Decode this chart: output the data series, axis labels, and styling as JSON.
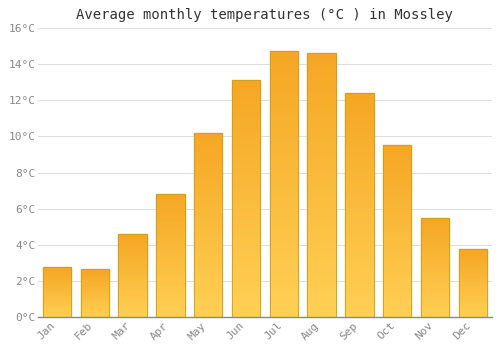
{
  "title": "Average monthly temperatures (°C ) in Mossley",
  "months": [
    "Jan",
    "Feb",
    "Mar",
    "Apr",
    "May",
    "Jun",
    "Jul",
    "Aug",
    "Sep",
    "Oct",
    "Nov",
    "Dec"
  ],
  "values": [
    2.8,
    2.7,
    4.6,
    6.8,
    10.2,
    13.1,
    14.7,
    14.6,
    12.4,
    9.5,
    5.5,
    3.8
  ],
  "bar_color_orange": "#F5A623",
  "bar_color_yellow": "#FFD055",
  "bar_edge_color": "#C8A020",
  "ylim": [
    0,
    16
  ],
  "yticks": [
    0,
    2,
    4,
    6,
    8,
    10,
    12,
    14,
    16
  ],
  "ytick_labels": [
    "0°C",
    "2°C",
    "4°C",
    "6°C",
    "8°C",
    "10°C",
    "12°C",
    "14°C",
    "16°C"
  ],
  "background_color": "#FFFFFF",
  "grid_color": "#DDDDDD",
  "title_fontsize": 10,
  "tick_fontsize": 8,
  "tick_color": "#888888",
  "axis_color": "#888888"
}
